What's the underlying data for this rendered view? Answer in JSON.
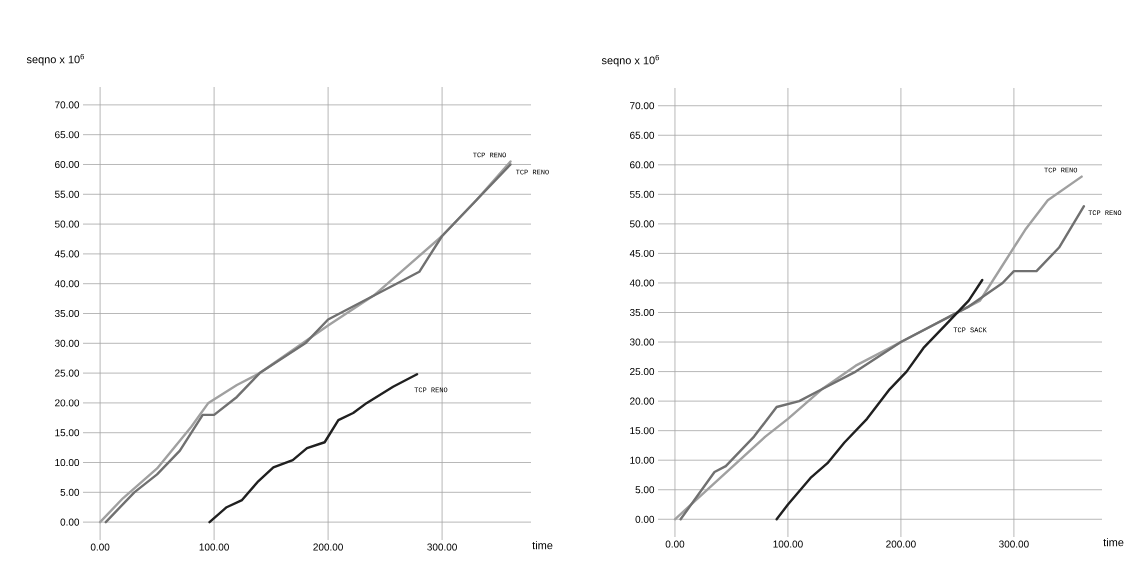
{
  "chart_data": [
    {
      "type": "line",
      "xlabel": "time",
      "ylabel": "seqno x 10$^{6}$",
      "grid": true,
      "marker": "none",
      "line_style": "solid",
      "xlim": [
        -15,
        378
      ],
      "ylim": [
        -3,
        73
      ],
      "xticks": [
        {
          "value": 0,
          "label": "0.00"
        },
        {
          "value": 100,
          "label": "100.00"
        },
        {
          "value": 200,
          "label": "200.00"
        },
        {
          "value": 300,
          "label": "300.00"
        }
      ],
      "yticks": [
        {
          "value": 0,
          "label": "0.00"
        },
        {
          "value": 5,
          "label": "5.00"
        },
        {
          "value": 10,
          "label": "10.00"
        },
        {
          "value": 15,
          "label": "15.00"
        },
        {
          "value": 20,
          "label": "20.00"
        },
        {
          "value": 25,
          "label": "25.00"
        },
        {
          "value": 30,
          "label": "30.00"
        },
        {
          "value": 35,
          "label": "35.00"
        },
        {
          "value": 40,
          "label": "40.00"
        },
        {
          "value": 45,
          "label": "45.00"
        },
        {
          "value": 50,
          "label": "50.00"
        },
        {
          "value": 55,
          "label": "55.00"
        },
        {
          "value": 60,
          "label": "60.00"
        },
        {
          "value": 65,
          "label": "65.00"
        },
        {
          "value": 70,
          "label": "70.00"
        }
      ],
      "series": [
        {
          "name": "TCP RENO",
          "color": "#a0a0a0",
          "x": [
            0,
            20,
            50,
            80,
            95,
            120,
            140,
            170,
            200,
            240,
            270,
            300,
            330,
            360
          ],
          "values": [
            0,
            4,
            9,
            16,
            20,
            23,
            25,
            29,
            33,
            38,
            43,
            48,
            54,
            60.5
          ]
        },
        {
          "name": "TCP RENO",
          "color": "#707070",
          "x": [
            5,
            30,
            50,
            70,
            90,
            100,
            120,
            140,
            180,
            200,
            230,
            260,
            280,
            300,
            330,
            360
          ],
          "values": [
            0,
            5,
            8,
            12,
            18,
            18,
            21,
            25,
            30,
            34,
            37,
            40,
            42,
            48,
            54,
            60
          ]
        },
        {
          "name": "TCP RENO",
          "color": "#202020",
          "x": [
            96,
            111,
            124.5,
            138,
            152,
            169,
            181.5,
            197,
            209,
            222,
            234,
            257,
            278
          ],
          "values": [
            0,
            2.5,
            3.7,
            6.7,
            9.2,
            10.4,
            12.4,
            13.4,
            17.1,
            18.3,
            20,
            22.7,
            24.8
          ]
        }
      ]
    },
    {
      "type": "line",
      "xlabel": "time",
      "ylabel": "seqno x 10$^{6}$",
      "grid": true,
      "marker": "none",
      "line_style": "solid",
      "xlim": [
        -15,
        378
      ],
      "ylim": [
        -3,
        73
      ],
      "xticks": [
        {
          "value": 0,
          "label": "0.00"
        },
        {
          "value": 100,
          "label": "100.00"
        },
        {
          "value": 200,
          "label": "200.00"
        },
        {
          "value": 300,
          "label": "300.00"
        }
      ],
      "yticks": [
        {
          "value": 0,
          "label": "0.00"
        },
        {
          "value": 5,
          "label": "5.00"
        },
        {
          "value": 10,
          "label": "10.00"
        },
        {
          "value": 15,
          "label": "15.00"
        },
        {
          "value": 20,
          "label": "20.00"
        },
        {
          "value": 25,
          "label": "25.00"
        },
        {
          "value": 30,
          "label": "30.00"
        },
        {
          "value": 35,
          "label": "35.00"
        },
        {
          "value": 40,
          "label": "40.00"
        },
        {
          "value": 45,
          "label": "45.00"
        },
        {
          "value": 50,
          "label": "50.00"
        },
        {
          "value": 55,
          "label": "55.00"
        },
        {
          "value": 60,
          "label": "60.00"
        },
        {
          "value": 65,
          "label": "65.00"
        },
        {
          "value": 70,
          "label": "70.00"
        }
      ],
      "series": [
        {
          "name": "TCP RENO",
          "color": "#a0a0a0",
          "x": [
            0,
            40,
            80,
            100,
            130,
            160,
            200,
            240,
            270,
            290,
            310,
            330,
            360
          ],
          "values": [
            0,
            7,
            14,
            17,
            22,
            26,
            30,
            34,
            37,
            43,
            49,
            54,
            58
          ]
        },
        {
          "name": "TCP RENO",
          "color": "#707070",
          "x": [
            5,
            35,
            45,
            70,
            90,
            110,
            130,
            160,
            200,
            230,
            260,
            290,
            300,
            320,
            340,
            362
          ],
          "values": [
            0,
            8,
            9,
            14,
            19,
            20,
            22,
            25,
            30,
            33,
            36,
            40,
            42,
            42,
            46,
            53
          ]
        },
        {
          "name": "TCP SACK",
          "color": "#202020",
          "x": [
            90,
            100,
            120,
            135,
            150,
            170,
            190,
            205,
            220,
            240,
            260,
            272
          ],
          "values": [
            0,
            2.5,
            7,
            9.5,
            13,
            17,
            22,
            25,
            29,
            33,
            37,
            40.5
          ]
        }
      ]
    }
  ]
}
